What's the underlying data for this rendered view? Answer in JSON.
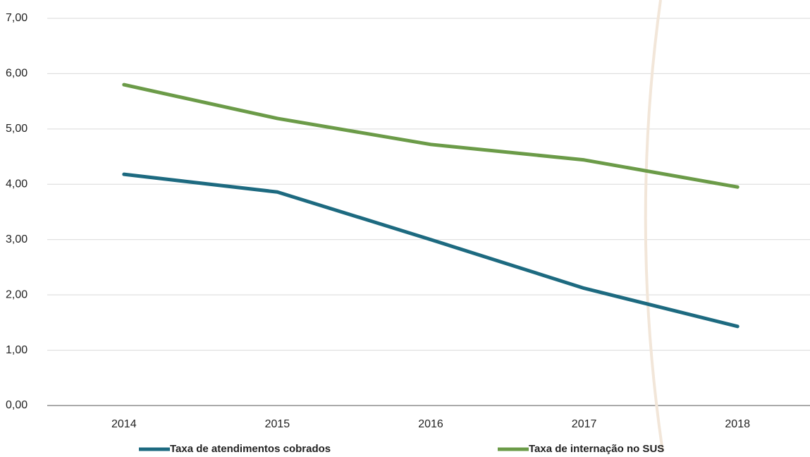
{
  "chart_data": {
    "type": "line",
    "categories": [
      "2014",
      "2015",
      "2016",
      "2017",
      "2018"
    ],
    "series": [
      {
        "name": "Taxa de atendimentos  cobrados",
        "color": "#1d6a80",
        "values": [
          4.18,
          3.86,
          3.0,
          2.12,
          1.43
        ]
      },
      {
        "name": "Taxa de internação no SUS",
        "color": "#6b9b48",
        "values": [
          5.8,
          5.19,
          4.72,
          4.44,
          3.95
        ]
      }
    ],
    "ylim": [
      0,
      7
    ],
    "yticks": [
      {
        "value": 0,
        "label": "0,00"
      },
      {
        "value": 1,
        "label": "1,00"
      },
      {
        "value": 2,
        "label": "2,00"
      },
      {
        "value": 3,
        "label": "3,00"
      },
      {
        "value": 4,
        "label": "4,00"
      },
      {
        "value": 5,
        "label": "5,00"
      },
      {
        "value": 6,
        "label": "6,00"
      },
      {
        "value": 7,
        "label": "7,00"
      }
    ],
    "grid": true,
    "legend": "bottom"
  }
}
